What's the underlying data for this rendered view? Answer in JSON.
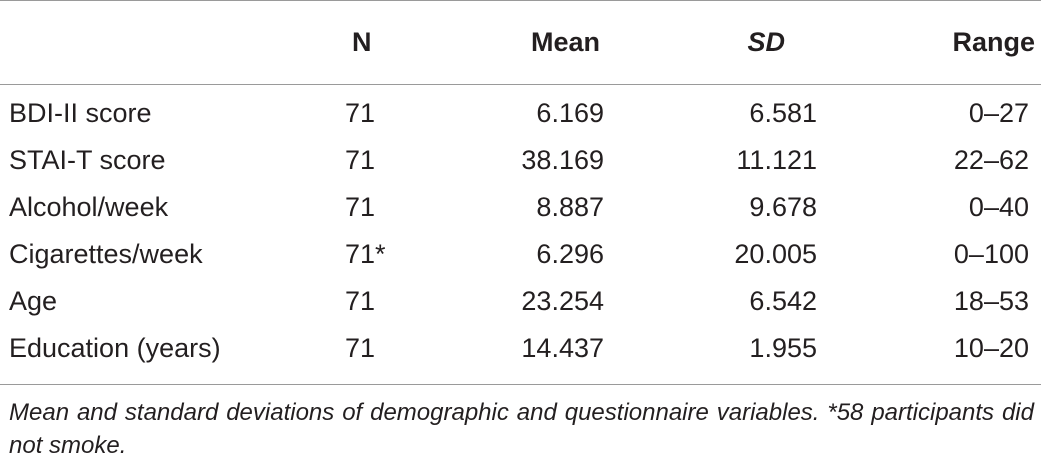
{
  "table": {
    "headers": [
      "",
      "N",
      "Mean",
      "SD",
      "Range"
    ],
    "rows": [
      {
        "label": "BDI-II score",
        "n": "71",
        "mean": "6.169",
        "sd": "6.581",
        "range": "0–27"
      },
      {
        "label": "STAI-T score",
        "n": "71",
        "mean": "38.169",
        "sd": "11.121",
        "range": "22–62"
      },
      {
        "label": "Alcohol/week",
        "n": "71",
        "mean": "8.887",
        "sd": "9.678",
        "range": "0–40"
      },
      {
        "label": "Cigarettes/week",
        "n": "71*",
        "mean": "6.296",
        "sd": "20.005",
        "range": "0–100"
      },
      {
        "label": "Age",
        "n": "71",
        "mean": "23.254",
        "sd": "6.542",
        "range": "18–53"
      },
      {
        "label": "Education (years)",
        "n": "71",
        "mean": "14.437",
        "sd": "1.955",
        "range": "10–20"
      }
    ]
  },
  "footnote": "Mean and standard deviations of demographic and questionnaire variables. *58 participants did not smoke."
}
